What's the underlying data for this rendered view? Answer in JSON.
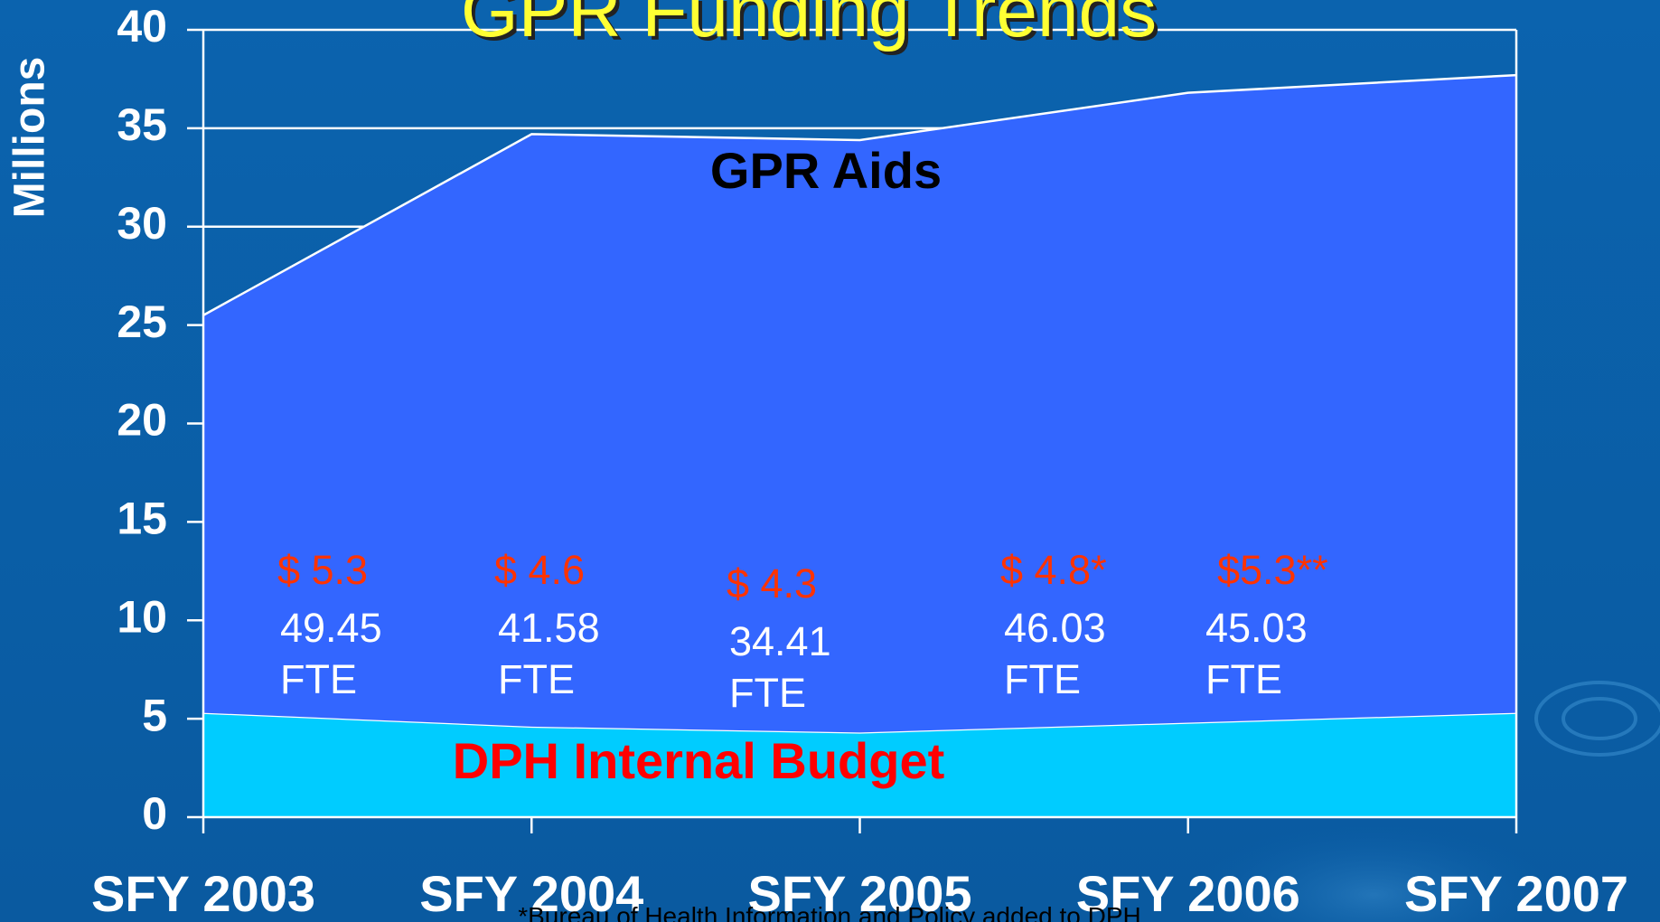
{
  "chart_data": {
    "type": "stacked_area",
    "title": "GPR Funding Trends",
    "y_axis_label": "Millions",
    "categories": [
      "SFY 2003",
      "SFY 2004",
      "SFY 2005",
      "SFY 2006",
      "SFY 2007"
    ],
    "series": [
      {
        "name": "DPH Internal Budget",
        "color": "#00ccff",
        "label_color": "#ff0000",
        "values": [
          5.3,
          4.6,
          4.3,
          4.8,
          5.3
        ]
      },
      {
        "name": "GPR Aids",
        "color": "#3366ff",
        "label_color": "#000000",
        "values": [
          20.2,
          30.1,
          30.1,
          32.0,
          32.4
        ]
      }
    ],
    "ylim": [
      0,
      40
    ],
    "yticks": [
      0,
      5,
      10,
      15,
      20,
      25,
      30,
      35,
      40
    ],
    "grid": true,
    "annotations": [
      {
        "amount": "$ 5.3",
        "fte": "49.45",
        "unit": "FTE"
      },
      {
        "amount": "$ 4.6",
        "fte": "41.58",
        "unit": "FTE"
      },
      {
        "amount": "$ 4.3",
        "fte": "34.41",
        "unit": "FTE"
      },
      {
        "amount": "$ 4.8*",
        "fte": "46.03",
        "unit": "FTE"
      },
      {
        "amount": "$5.3**",
        "fte": "45.03",
        "unit": "FTE"
      }
    ],
    "footnote": "*Bureau of Health Information and Policy added to DPH"
  }
}
